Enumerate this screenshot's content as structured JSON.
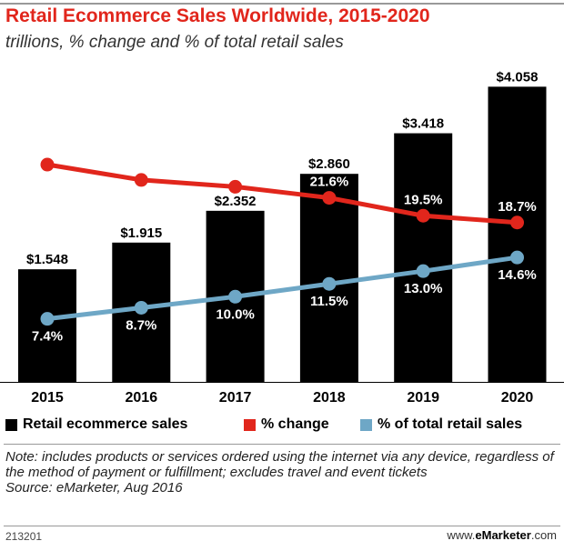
{
  "header": {
    "title": "Retail Ecommerce Sales Worldwide, 2015-2020",
    "subtitle": "trillions, % change and % of total retail sales"
  },
  "legend": {
    "items": [
      {
        "label": "Retail ecommerce sales",
        "color": "#000000"
      },
      {
        "label": "% change",
        "color": "#e1261c"
      },
      {
        "label": "% of total retail sales",
        "color": "#6ea7c6"
      }
    ]
  },
  "chart_data": {
    "type": "bar",
    "categories": [
      "2015",
      "2016",
      "2017",
      "2018",
      "2019",
      "2020"
    ],
    "series": [
      {
        "name": "Retail ecommerce sales",
        "type": "bar",
        "values": [
          1.548,
          1.915,
          2.352,
          2.86,
          3.418,
          4.058
        ],
        "labels": [
          "$1.548",
          "$1.915",
          "$2.352",
          "$2.860",
          "$3.418",
          "$4.058"
        ],
        "color": "#000000"
      },
      {
        "name": "% change",
        "type": "line",
        "values": [
          25.5,
          23.7,
          22.9,
          21.6,
          19.5,
          18.7
        ],
        "labels": [
          "25.5%",
          "23.7%",
          "22.9%",
          "21.6%",
          "19.5%",
          "18.7%"
        ],
        "color": "#e1261c"
      },
      {
        "name": "% of total retail sales",
        "type": "line",
        "values": [
          7.4,
          8.7,
          10.0,
          11.5,
          13.0,
          14.6
        ],
        "labels": [
          "7.4%",
          "8.7%",
          "10.0%",
          "11.5%",
          "13.0%",
          "14.6%"
        ],
        "color": "#6ea7c6"
      }
    ],
    "bar_ylim": [
      0,
      4.1
    ],
    "line_ylim": [
      0,
      35
    ],
    "grid": false,
    "legend_position": "bottom"
  },
  "footer": {
    "note": "Note: includes products or services ordered using the internet via any device, regardless of the method of payment or fulfillment; excludes travel and event tickets",
    "source": "Source: eMarketer, Aug 2016",
    "chart_id": "213201",
    "site_prefix": "www.",
    "site_brand": "eMarketer",
    "site_suffix": ".com"
  }
}
